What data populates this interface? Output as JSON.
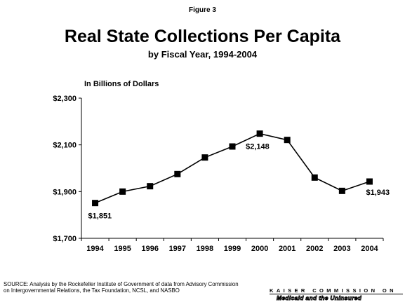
{
  "figure_label": "Figure 3",
  "source_text": "SOURCE: Analysis by the Rockefeller Institute of Government of data from Advisory Commission on Intergovernmental Relations, the Tax Foundation, NCSL, and NASBO",
  "logo": {
    "top": "KAISER COMMISSION ON",
    "bottom": "Medicaid and the Uninsured"
  },
  "chart_data": {
    "type": "line",
    "title": "Real State Collections Per Capita",
    "subtitle": "by Fiscal Year, 1994-2004",
    "ylabel": "In Billions of Dollars",
    "xlabel": "",
    "categories": [
      "1994",
      "1995",
      "1996",
      "1997",
      "1998",
      "1999",
      "2000",
      "2001",
      "2002",
      "2003",
      "2004"
    ],
    "series": [
      {
        "values": [
          1851,
          1900,
          1923,
          1975,
          2046,
          2093,
          2148,
          2121,
          1960,
          1903,
          1943
        ]
      }
    ],
    "ylim": [
      1700,
      2300
    ],
    "yticks": [
      1700,
      1900,
      2100,
      2300
    ],
    "ytick_labels": [
      "$1,700",
      "$1,900",
      "$2,100",
      "$2,300"
    ],
    "data_labels": [
      {
        "index": 0,
        "text": "$1,851"
      },
      {
        "index": 6,
        "text": "$2,148"
      },
      {
        "index": 10,
        "text": "$1,943"
      }
    ],
    "marker": "square",
    "line_color": "#000000",
    "grid": false
  }
}
